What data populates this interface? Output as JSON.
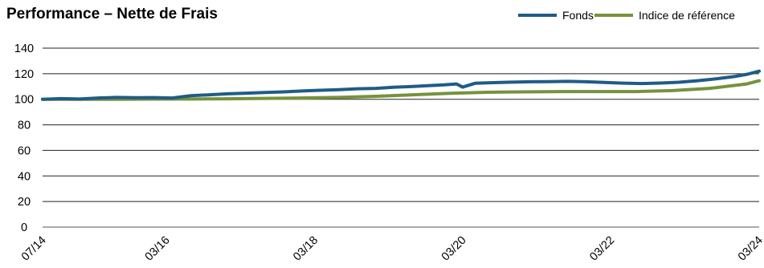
{
  "chart_data": {
    "type": "line",
    "title": "Performance – Nette de Frais",
    "xlabel": "",
    "ylabel": "",
    "x_tick_labels": [
      "07/14",
      "03/16",
      "03/18",
      "03/20",
      "03/22",
      "03/24"
    ],
    "x_range": [
      "07/14",
      "03/24"
    ],
    "ylim": [
      0,
      140
    ],
    "y_ticks": [
      0,
      20,
      40,
      60,
      80,
      100,
      120,
      140
    ],
    "grid": "horizontal",
    "legend_position": "top-right",
    "series": [
      {
        "name": "Fonds",
        "color": "#1F5C86",
        "points": [
          [
            "07/14",
            100.0
          ],
          [
            "10/14",
            100.5
          ],
          [
            "01/15",
            100.2
          ],
          [
            "04/15",
            101.0
          ],
          [
            "07/15",
            101.5
          ],
          [
            "10/15",
            101.2
          ],
          [
            "01/16",
            101.3
          ],
          [
            "04/16",
            101.0
          ],
          [
            "07/16",
            102.8
          ],
          [
            "10/16",
            103.5
          ],
          [
            "01/17",
            104.3
          ],
          [
            "04/17",
            104.8
          ],
          [
            "07/17",
            105.3
          ],
          [
            "10/17",
            105.8
          ],
          [
            "01/18",
            106.5
          ],
          [
            "04/18",
            107.0
          ],
          [
            "07/18",
            107.5
          ],
          [
            "10/18",
            108.2
          ],
          [
            "01/19",
            108.5
          ],
          [
            "04/19",
            109.5
          ],
          [
            "07/19",
            110.0
          ],
          [
            "10/19",
            110.8
          ],
          [
            "12/19",
            111.3
          ],
          [
            "02/20",
            112.0
          ],
          [
            "03/20",
            109.5
          ],
          [
            "05/20",
            112.5
          ],
          [
            "08/20",
            113.0
          ],
          [
            "11/20",
            113.4
          ],
          [
            "02/21",
            113.7
          ],
          [
            "05/21",
            113.8
          ],
          [
            "08/21",
            114.0
          ],
          [
            "11/21",
            113.7
          ],
          [
            "02/22",
            113.2
          ],
          [
            "05/22",
            112.6
          ],
          [
            "08/22",
            112.3
          ],
          [
            "11/22",
            112.7
          ],
          [
            "02/23",
            113.3
          ],
          [
            "05/23",
            114.5
          ],
          [
            "08/23",
            116.0
          ],
          [
            "11/23",
            117.8
          ],
          [
            "01/24",
            119.5
          ],
          [
            "03/24",
            122.0
          ]
        ]
      },
      {
        "name": "Indice de référence",
        "color": "#76923C",
        "points": [
          [
            "07/14",
            100.0
          ],
          [
            "01/15",
            100.0
          ],
          [
            "07/15",
            100.0
          ],
          [
            "01/16",
            100.1
          ],
          [
            "07/16",
            100.2
          ],
          [
            "01/17",
            100.4
          ],
          [
            "07/17",
            100.7
          ],
          [
            "01/18",
            101.0
          ],
          [
            "07/18",
            101.5
          ],
          [
            "01/19",
            102.3
          ],
          [
            "07/19",
            103.5
          ],
          [
            "01/20",
            104.7
          ],
          [
            "07/20",
            105.5
          ],
          [
            "01/21",
            105.8
          ],
          [
            "07/21",
            106.0
          ],
          [
            "01/22",
            106.0
          ],
          [
            "07/22",
            106.0
          ],
          [
            "01/23",
            106.8
          ],
          [
            "07/23",
            108.5
          ],
          [
            "01/24",
            112.0
          ],
          [
            "03/24",
            114.5
          ]
        ]
      }
    ]
  }
}
